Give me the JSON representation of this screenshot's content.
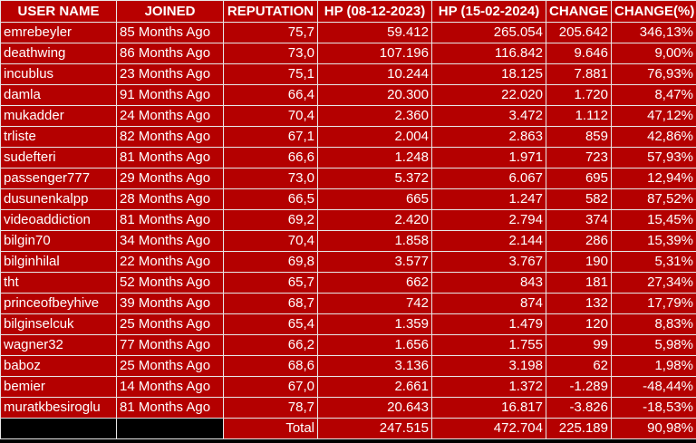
{
  "headers": [
    "USER NAME",
    "JOINED",
    "REPUTATION",
    "HP (08-12-2023)",
    "HP (15-02-2024)",
    "CHANGE",
    "CHANGE(%)"
  ],
  "rows": [
    [
      "emrebeyler",
      "85 Months Ago",
      "75,7",
      "59.412",
      "265.054",
      "205.642",
      "346,13%"
    ],
    [
      "deathwing",
      "86 Months Ago",
      "73,0",
      "107.196",
      "116.842",
      "9.646",
      "9,00%"
    ],
    [
      "incublus",
      "23 Months Ago",
      "75,1",
      "10.244",
      "18.125",
      "7.881",
      "76,93%"
    ],
    [
      "damla",
      "91 Months Ago",
      "66,4",
      "20.300",
      "22.020",
      "1.720",
      "8,47%"
    ],
    [
      "mukadder",
      "24 Months Ago",
      "70,4",
      "2.360",
      "3.472",
      "1.112",
      "47,12%"
    ],
    [
      "trliste",
      "82 Months Ago",
      "67,1",
      "2.004",
      "2.863",
      "859",
      "42,86%"
    ],
    [
      "sudefteri",
      "81 Months Ago",
      "66,6",
      "1.248",
      "1.971",
      "723",
      "57,93%"
    ],
    [
      "passenger777",
      "29 Months Ago",
      "73,0",
      "5.372",
      "6.067",
      "695",
      "12,94%"
    ],
    [
      "dusunenkalpp",
      "28 Months Ago",
      "66,5",
      "665",
      "1.247",
      "582",
      "87,52%"
    ],
    [
      "videoaddiction",
      "81 Months Ago",
      "69,2",
      "2.420",
      "2.794",
      "374",
      "15,45%"
    ],
    [
      "bilgin70",
      "34 Months Ago",
      "70,4",
      "1.858",
      "2.144",
      "286",
      "15,39%"
    ],
    [
      "bilginhilal",
      "22 Months Ago",
      "69,8",
      "3.577",
      "3.767",
      "190",
      "5,31%"
    ],
    [
      "tht",
      "52 Months Ago",
      "65,7",
      "662",
      "843",
      "181",
      "27,34%"
    ],
    [
      "princeofbeyhive",
      "39 Months Ago",
      "68,7",
      "742",
      "874",
      "132",
      "17,79%"
    ],
    [
      "bilginselcuk",
      "25 Months Ago",
      "65,4",
      "1.359",
      "1.479",
      "120",
      "8,83%"
    ],
    [
      "wagner32",
      "77 Months Ago",
      "66,2",
      "1.656",
      "1.755",
      "99",
      "5,98%"
    ],
    [
      "baboz",
      "25 Months Ago",
      "68,6",
      "3.136",
      "3.198",
      "62",
      "1,98%"
    ],
    [
      "bemier",
      "14 Months Ago",
      "67,0",
      "2.661",
      "1.372",
      "-1.289",
      "-48,44%"
    ],
    [
      "muratkbesiroglu",
      "81 Months Ago",
      "78,7",
      "20.643",
      "16.817",
      "-3.826",
      "-18,53%"
    ]
  ],
  "total": {
    "label": "Total",
    "hp_2023": "247.515",
    "hp_2024": "472.704",
    "change": "225.189",
    "change_pct": "90,98%"
  },
  "colors": {
    "header_bg": "#b80000",
    "cell_bg": "#b40000",
    "text": "#ffffff",
    "border": "#e8e8e8"
  }
}
